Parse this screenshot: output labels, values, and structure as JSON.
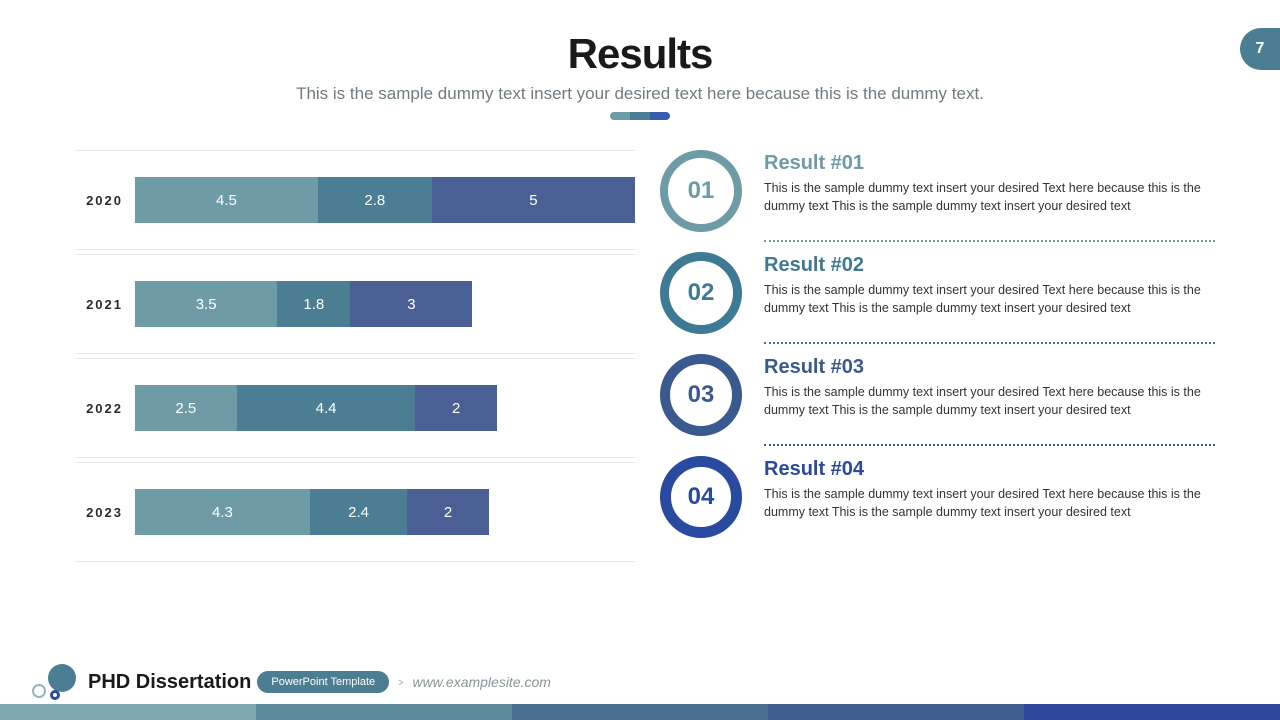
{
  "page_number": "7",
  "title": "Results",
  "subtitle": "This is the sample dummy text insert your desired text here because this is the dummy text.",
  "accent_colors": [
    "#6e9ba5",
    "#4b7e93",
    "#3a5bb0"
  ],
  "chart": {
    "type": "stacked-bar-horizontal",
    "segment_colors": [
      "#6e9ba5",
      "#4b7e93",
      "#4a5f94"
    ],
    "value_text_color": "#ffffff",
    "value_fontsize": 15,
    "label_fontsize": 13,
    "label_color": "#2c2c2c",
    "grid_color": "#e8e8e8",
    "rows": [
      {
        "label": "2020",
        "values": [
          4.5,
          2.8,
          5
        ]
      },
      {
        "label": "2021",
        "values": [
          3.5,
          1.8,
          3
        ]
      },
      {
        "label": "2022",
        "values": [
          2.5,
          4.4,
          2
        ]
      },
      {
        "label": "2023",
        "values": [
          4.3,
          2.4,
          2
        ]
      }
    ],
    "max_total": 12.3
  },
  "results": [
    {
      "num": "01",
      "title": "Result #01",
      "desc": "This is the sample dummy text insert your desired\nText here because this is the dummy text This is the sample dummy text insert your desired text",
      "color": "#6e9ba5",
      "ring": 8
    },
    {
      "num": "02",
      "title": "Result #02",
      "desc": "This is the sample dummy text insert your desired\nText here because this is the dummy text This is the sample dummy text insert your desired text",
      "color": "#3f7a94",
      "ring": 9
    },
    {
      "num": "03",
      "title": "Result #03",
      "desc": "This is the sample dummy text insert your desired\nText here because this is the dummy text This is the sample dummy text insert your desired text",
      "color": "#3a5a8f",
      "ring": 10
    },
    {
      "num": "04",
      "title": "Result #04",
      "desc": "This is the sample dummy text insert your desired\nText here because this is the dummy text This is the sample dummy text insert your desired text",
      "color": "#2a4a9f",
      "ring": 11
    }
  ],
  "footer": {
    "title": "PHD Dissertation",
    "pill": "PowerPoint Template",
    "url": "www.examplesite.com",
    "logo_big_color": "#4b7e93"
  },
  "stripe_colors": [
    "#7da7ad",
    "#5b8b9a",
    "#4a6f8e",
    "#3d5e8f",
    "#2f4a9c"
  ]
}
